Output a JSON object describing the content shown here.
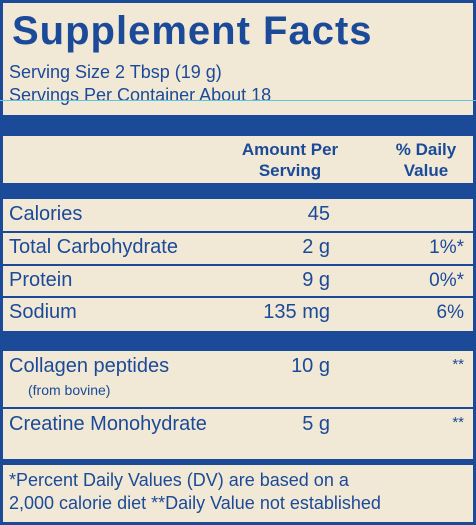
{
  "title": "Supplement Facts",
  "serving_size": "Serving Size 2 Tbsp (19 g)",
  "servings_per_container": "Servings Per Container About 18",
  "header": {
    "amount_line1": "Amount Per",
    "amount_line2": "Serving",
    "dv_line1": "% Daily",
    "dv_line2": "Value"
  },
  "rows": [
    {
      "label": "Calories",
      "amount": "45",
      "dv": ""
    },
    {
      "label": "Total Carbohydrate",
      "amount": "2 g",
      "dv": "1%*"
    },
    {
      "label": "Protein",
      "amount": "9 g",
      "dv": "0%*"
    },
    {
      "label": "Sodium",
      "amount": "135 mg",
      "dv": "6%"
    },
    {
      "label": "Collagen peptides",
      "sublabel": "(from bovine)",
      "amount": "10 g",
      "dv": "**"
    },
    {
      "label": "Creatine Monohydrate",
      "amount": "5 g",
      "dv": "**"
    }
  ],
  "footnote_line1": "*Percent Daily Values (DV) are based on a",
  "footnote_line2": "2,000 calorie diet **Daily Value not established",
  "colors": {
    "ink": "#1b4a98",
    "background": "#f1e8d6",
    "accent_line": "#5fc4dc"
  }
}
